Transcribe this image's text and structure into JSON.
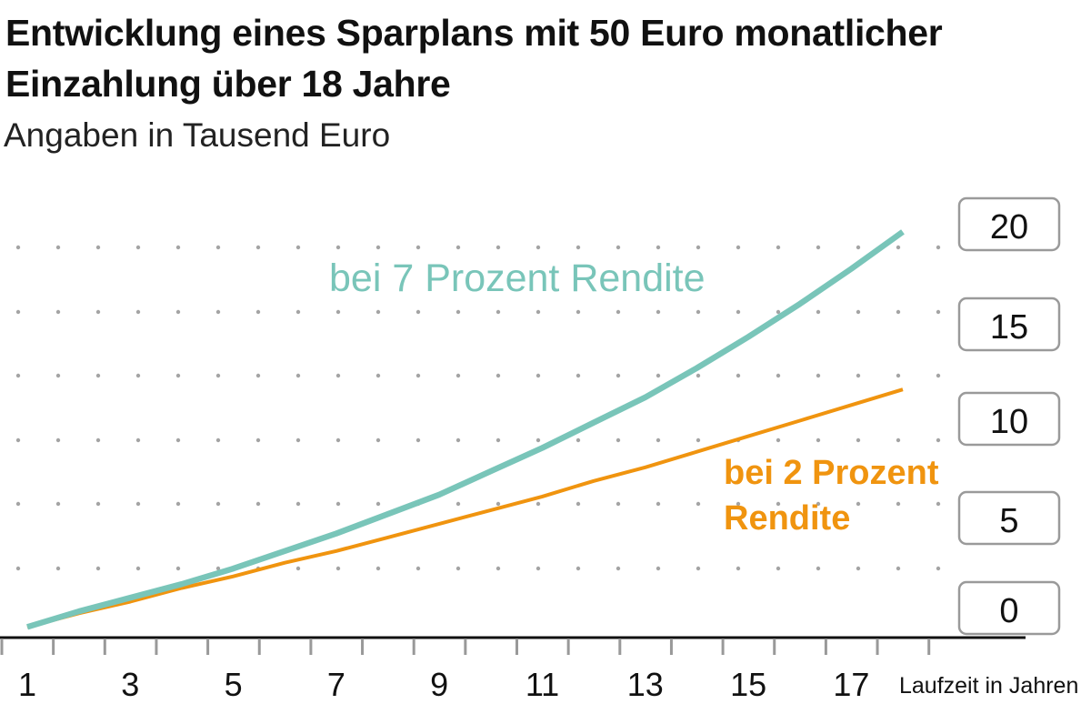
{
  "title": "Entwicklung eines Sparplans mit 50 Euro monatlicher Einzahlung über 18 Jahre",
  "subtitle": "Angaben in Tausend Euro",
  "chart_data": {
    "type": "line",
    "title": "Entwicklung eines Sparplans mit 50 Euro monatlicher Einzahlung über 18 Jahre",
    "subtitle": "Angaben in Tausend Euro",
    "xlabel": "Laufzeit in Jahren",
    "ylabel": "",
    "x": [
      1,
      2,
      3,
      4,
      5,
      6,
      7,
      8,
      9,
      10,
      11,
      12,
      13,
      14,
      15,
      16,
      17,
      18
    ],
    "xticks": [
      "1",
      "3",
      "5",
      "7",
      "9",
      "11",
      "13",
      "15",
      "17"
    ],
    "yticks": [
      "0",
      "5",
      "10",
      "15",
      "20"
    ],
    "xlim": [
      0.5,
      18.5
    ],
    "ylim": [
      0,
      20
    ],
    "grid": "dotted",
    "series": [
      {
        "name": "bei 7 Prozent Rendite",
        "color": "#79c5b9",
        "values": [
          0.5,
          1.3,
          2.0,
          2.7,
          3.5,
          4.4,
          5.3,
          6.3,
          7.3,
          8.5,
          9.7,
          11.0,
          12.3,
          13.8,
          15.4,
          17.1,
          18.9,
          20.8
        ]
      },
      {
        "name": "bei 2 Prozent Rendite",
        "name_lines": [
          "bei 2 Prozent",
          "Rendite"
        ],
        "color": "#f0940f",
        "values": [
          0.5,
          1.2,
          1.8,
          2.5,
          3.1,
          3.8,
          4.4,
          5.1,
          5.8,
          6.5,
          7.2,
          8.0,
          8.7,
          9.5,
          10.3,
          11.1,
          11.9,
          12.7
        ]
      }
    ]
  }
}
